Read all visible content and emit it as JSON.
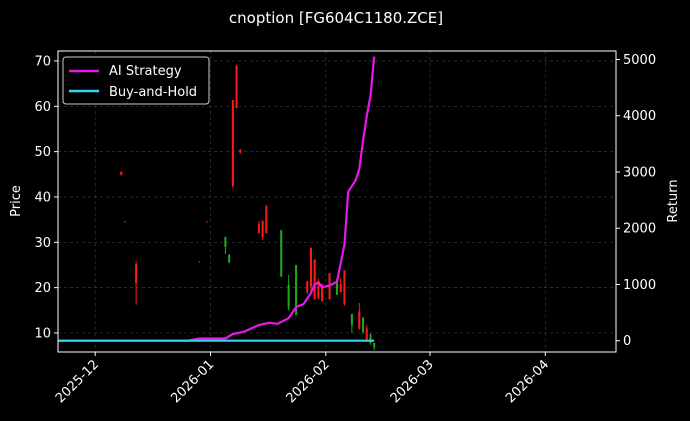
{
  "chart_data": {
    "type": "line",
    "title": "cnoption [FG604C1180.ZCE]",
    "ylabel_left": "Price",
    "ylabel_right": "Return",
    "x_range": [
      "2025-11-21",
      "2026-04-20"
    ],
    "ylim_left": [
      5.8,
      72.2
    ],
    "ylim_right": [
      -200,
      5150
    ],
    "grid": true,
    "legend_position": "upper-left",
    "x_ticks": [
      "2025-12",
      "2026-01",
      "2026-02",
      "2026-03",
      "2026-04"
    ],
    "left_ticks": [
      10,
      20,
      30,
      40,
      50,
      60,
      70
    ],
    "right_ticks": [
      0,
      1000,
      2000,
      3000,
      4000,
      5000
    ],
    "colors": {
      "up": "#ff1a1a",
      "down": "#1fa81f",
      "ai": "#e619e6",
      "bh": "#33d6f0",
      "grid": "#3a3a3a"
    },
    "series": [
      {
        "name": "AI Strategy",
        "axis": "right",
        "points": [
          [
            "2025-11-21",
            0
          ],
          [
            "2025-12-26",
            0
          ],
          [
            "2025-12-29",
            40
          ],
          [
            "2026-01-05",
            40
          ],
          [
            "2026-01-07",
            120
          ],
          [
            "2026-01-10",
            160
          ],
          [
            "2026-01-14",
            280
          ],
          [
            "2026-01-17",
            320
          ],
          [
            "2026-01-19",
            300
          ],
          [
            "2026-01-22",
            400
          ],
          [
            "2026-01-24",
            600
          ],
          [
            "2026-01-26",
            650
          ],
          [
            "2026-01-28",
            850
          ],
          [
            "2026-01-29",
            1000
          ],
          [
            "2026-01-30",
            1040
          ],
          [
            "2026-01-31",
            950
          ],
          [
            "2026-02-02",
            980
          ],
          [
            "2026-02-04",
            1050
          ],
          [
            "2026-02-06",
            1700
          ],
          [
            "2026-02-07",
            2650
          ],
          [
            "2026-02-09",
            2850
          ],
          [
            "2026-02-10",
            3050
          ],
          [
            "2026-02-11",
            3550
          ],
          [
            "2026-02-12",
            4000
          ],
          [
            "2026-02-13",
            4350
          ],
          [
            "2026-02-14",
            5050
          ]
        ]
      },
      {
        "name": "Buy-and-Hold",
        "axis": "right",
        "points": [
          [
            "2025-11-21",
            0
          ],
          [
            "2026-02-14",
            0
          ]
        ]
      }
    ],
    "candles": [
      {
        "date": "2025-12-08",
        "open": 45.6,
        "close": 44.8,
        "high": 45.6,
        "low": 44.8
      },
      {
        "date": "2025-12-09",
        "open": 34.6,
        "close": 34.4,
        "high": 34.6,
        "low": 34.4
      },
      {
        "date": "2025-12-12",
        "open": 25.2,
        "close": 21.0,
        "high": 25.9,
        "low": 16.2
      },
      {
        "date": "2025-12-29",
        "open": 25.8,
        "close": 25.6,
        "high": 25.8,
        "low": 25.6
      },
      {
        "date": "2025-12-31",
        "open": 34.6,
        "close": 34.4,
        "high": 34.6,
        "low": 34.4
      },
      {
        "date": "2026-01-05",
        "open": 29.0,
        "close": 31.2,
        "high": 31.2,
        "low": 27.4
      },
      {
        "date": "2026-01-06",
        "open": 25.6,
        "close": 27.2,
        "high": 27.4,
        "low": 25.4
      },
      {
        "date": "2026-01-07",
        "open": 61.4,
        "close": 42.4,
        "high": 61.4,
        "low": 42.0
      },
      {
        "date": "2026-01-08",
        "open": 68.9,
        "close": 59.6,
        "high": 69.2,
        "low": 59.6
      },
      {
        "date": "2026-01-09",
        "open": 50.4,
        "close": 49.8,
        "high": 50.6,
        "low": 49.6
      },
      {
        "date": "2026-01-14",
        "open": 34.0,
        "close": 32.0,
        "high": 34.6,
        "low": 32.0
      },
      {
        "date": "2026-01-15",
        "open": 34.8,
        "close": 31.2,
        "high": 34.8,
        "low": 30.6
      },
      {
        "date": "2026-01-16",
        "open": 38.0,
        "close": 32.0,
        "high": 38.2,
        "low": 32.0
      },
      {
        "date": "2026-01-20",
        "open": 22.4,
        "close": 32.6,
        "high": 32.8,
        "low": 22.4
      },
      {
        "date": "2026-01-22",
        "open": 15.6,
        "close": 20.6,
        "high": 22.8,
        "low": 15.0
      },
      {
        "date": "2026-01-24",
        "open": 14.0,
        "close": 25.0,
        "high": 25.0,
        "low": 14.0
      },
      {
        "date": "2026-01-27",
        "open": 21.4,
        "close": 19.0,
        "high": 21.4,
        "low": 18.6
      },
      {
        "date": "2026-01-28",
        "open": 28.8,
        "close": 20.2,
        "high": 28.8,
        "low": 18.6
      },
      {
        "date": "2026-01-29",
        "open": 26.2,
        "close": 17.4,
        "high": 26.2,
        "low": 17.4
      },
      {
        "date": "2026-01-30",
        "open": 21.4,
        "close": 17.6,
        "high": 22.0,
        "low": 17.4
      },
      {
        "date": "2026-01-31",
        "open": 20.8,
        "close": 17.0,
        "high": 20.8,
        "low": 17.0
      },
      {
        "date": "2026-02-02",
        "open": 23.2,
        "close": 17.4,
        "high": 23.2,
        "low": 17.4
      },
      {
        "date": "2026-02-04",
        "open": 18.4,
        "close": 21.8,
        "high": 21.8,
        "low": 18.4
      },
      {
        "date": "2026-02-05",
        "open": 20.8,
        "close": 19.0,
        "high": 22.0,
        "low": 19.0
      },
      {
        "date": "2026-02-06",
        "open": 23.8,
        "close": 16.4,
        "high": 23.8,
        "low": 16.0
      },
      {
        "date": "2026-02-08",
        "open": 11.8,
        "close": 14.2,
        "high": 14.2,
        "low": 10.0
      },
      {
        "date": "2026-02-10",
        "open": 14.8,
        "close": 10.8,
        "high": 16.6,
        "low": 10.8
      },
      {
        "date": "2026-02-11",
        "open": 10.2,
        "close": 13.4,
        "high": 13.4,
        "low": 9.8
      },
      {
        "date": "2026-02-12",
        "open": 11.0,
        "close": 8.6,
        "high": 11.8,
        "low": 8.2
      },
      {
        "date": "2026-02-13",
        "open": 7.8,
        "close": 9.6,
        "high": 10.0,
        "low": 7.4
      },
      {
        "date": "2026-02-14",
        "open": 6.8,
        "close": 7.8,
        "high": 7.8,
        "low": 6.2
      }
    ]
  }
}
